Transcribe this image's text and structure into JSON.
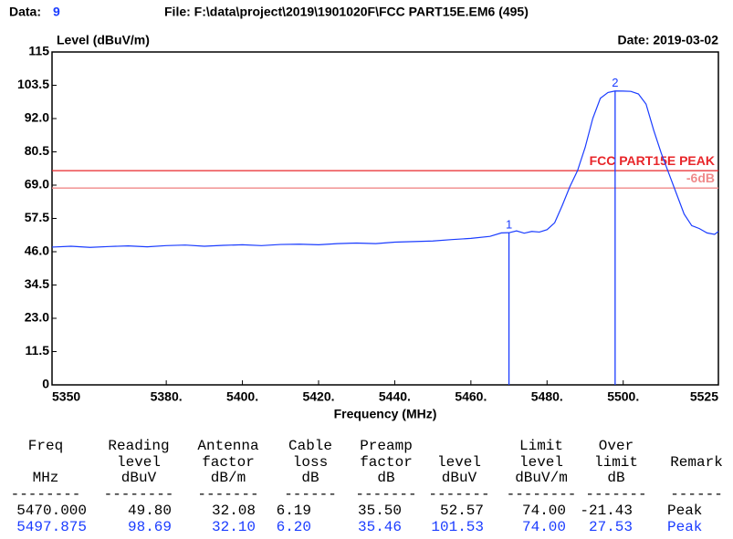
{
  "header": {
    "data_label": "Data:",
    "data_value": "9",
    "file": "File: F:\\data\\project\\2019\\1901020F\\FCC PART15E.EM6  (495)",
    "date": "Date: 2019-03-02"
  },
  "chart_data": {
    "type": "line",
    "ylabel": "Level (dBuV/m)",
    "xlabel": "Frequency (MHz)",
    "xlim": [
      5350,
      5525
    ],
    "xticks": [
      5350,
      {
        "value": 5380,
        "label": "5380."
      },
      {
        "value": 5400,
        "label": "5400."
      },
      {
        "value": 5420,
        "label": "5420."
      },
      {
        "value": 5440,
        "label": "5440."
      },
      {
        "value": 5460,
        "label": "5460."
      },
      {
        "value": 5480,
        "label": "5480."
      },
      {
        "value": 5500,
        "label": "5500."
      },
      5525
    ],
    "ylim": [
      0,
      115
    ],
    "yticks": [
      0,
      11.5,
      {
        "value": 23,
        "label": "23.0"
      },
      34.5,
      {
        "value": 46,
        "label": "46.0"
      },
      57.5,
      {
        "value": 69,
        "label": "69.0"
      },
      80.5,
      {
        "value": 92,
        "label": "92.0"
      },
      103.5,
      115
    ],
    "series": [
      {
        "color": "#1a3cff",
        "x": [
          5350,
          5355,
          5360,
          5365,
          5370,
          5375,
          5380,
          5385,
          5390,
          5395,
          5400,
          5405,
          5410,
          5415,
          5420,
          5425,
          5430,
          5435,
          5440,
          5445,
          5450,
          5455,
          5460,
          5465,
          5468,
          5470,
          5472,
          5474,
          5476,
          5478,
          5480,
          5482,
          5484,
          5486,
          5488,
          5490,
          5492,
          5494,
          5496,
          5497.875,
          5500,
          5502,
          5504,
          5506,
          5508,
          5510,
          5512,
          5514,
          5516,
          5518,
          5520,
          5522,
          5524,
          5525
        ],
        "values": [
          47.6,
          47.9,
          47.5,
          47.8,
          48.0,
          47.7,
          48.1,
          48.3,
          47.9,
          48.2,
          48.4,
          48.1,
          48.5,
          48.6,
          48.4,
          48.8,
          49.0,
          48.8,
          49.3,
          49.5,
          49.7,
          50.2,
          50.6,
          51.3,
          52.5,
          52.57,
          53.2,
          52.4,
          53.0,
          52.8,
          53.6,
          56.0,
          62.0,
          68.5,
          74.0,
          82.0,
          92.0,
          99.0,
          101.0,
          101.53,
          101.5,
          101.4,
          100.5,
          97.0,
          88.0,
          80.0,
          73.0,
          66.0,
          59.0,
          55.0,
          54.0,
          52.5,
          52.0,
          53.0
        ]
      }
    ],
    "limits": [
      {
        "name": "FCC PART15E PEAK",
        "value": 74,
        "color": "#e8262a"
      },
      {
        "name": "-6dB",
        "value": 68,
        "color": "#f08a8a"
      }
    ],
    "markers": [
      {
        "label": "1",
        "x": 5470,
        "value": 52.57
      },
      {
        "label": "2",
        "x": 5497.875,
        "value": 101.53
      }
    ]
  },
  "table": {
    "header": [
      [
        "Freq",
        "MHz"
      ],
      [
        "Reading",
        "level",
        "dBuV"
      ],
      [
        "Antenna",
        "factor",
        "dB/m"
      ],
      [
        "Cable",
        "loss",
        "dB"
      ],
      [
        "Preamp",
        "factor",
        "dB"
      ],
      [
        "level",
        "dBuV"
      ],
      [
        "Limit",
        "level",
        "dBuV/m"
      ],
      [
        "Over",
        "limit",
        "dB"
      ],
      [
        "Remark"
      ]
    ],
    "separators": [
      "--------",
      "--------",
      "-------",
      "------",
      "-------",
      "-------",
      "--------",
      "-------",
      "------"
    ],
    "rows": [
      [
        "5470.000",
        "49.80",
        "32.08",
        "6.19",
        "35.50",
        "52.57",
        "74.00",
        "-21.43",
        "Peak"
      ],
      [
        "5497.875",
        "98.69",
        "32.10",
        "6.20",
        "35.46",
        "101.53",
        "74.00",
        "27.53",
        "Peak"
      ]
    ]
  }
}
